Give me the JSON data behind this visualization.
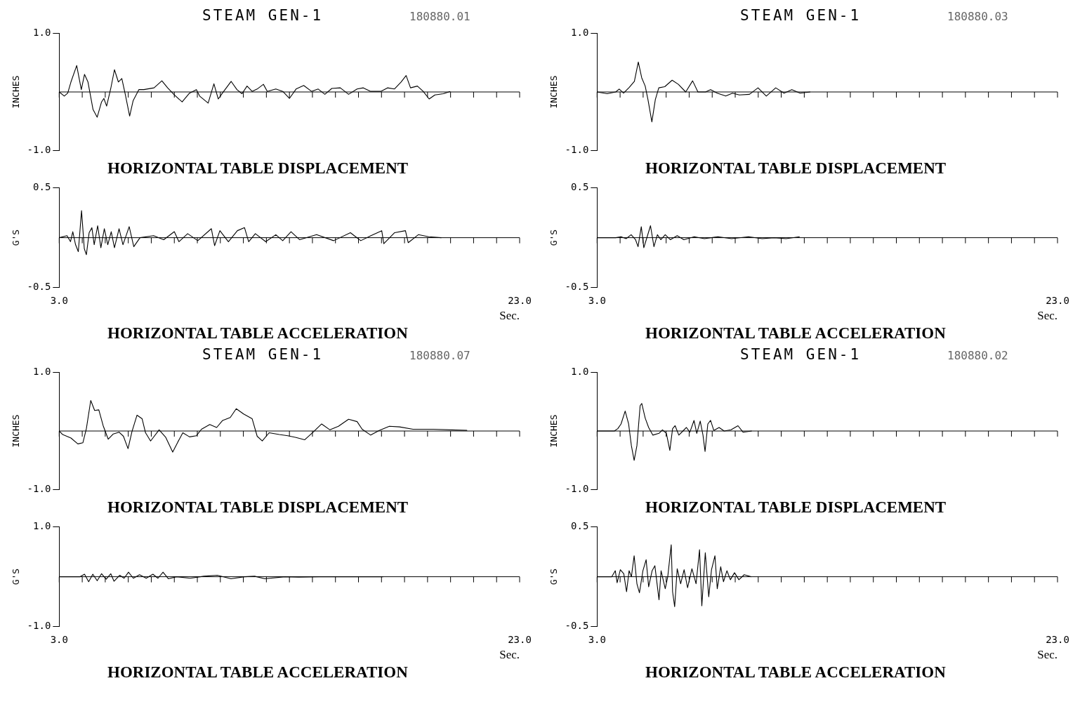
{
  "chart_data": [
    {
      "type": "line",
      "title": "STEAM GEN-1",
      "subtitle": "180880.01",
      "ylabel": "INCHES",
      "annotations": [
        "HORIZONTAL TABLE DISPLACEMENT"
      ],
      "tick_labels": "y",
      "xlim": [
        3,
        23
      ],
      "ylim": [
        -1,
        1
      ],
      "yticks": [
        {
          "value": -1,
          "label": "-1.0"
        },
        {
          "value": 1,
          "label": "1.0"
        }
      ],
      "xticks": [
        {
          "value": 3,
          "label": null
        },
        {
          "value": 4,
          "label": null
        },
        {
          "value": 5,
          "label": null
        },
        {
          "value": 6,
          "label": null
        },
        {
          "value": 7,
          "label": null
        },
        {
          "value": 8,
          "label": null
        },
        {
          "value": 9,
          "label": null
        },
        {
          "value": 10,
          "label": null
        },
        {
          "value": 11,
          "label": null
        },
        {
          "value": 12,
          "label": null
        },
        {
          "value": 13,
          "label": null
        },
        {
          "value": 14,
          "label": null
        },
        {
          "value": 15,
          "label": null
        },
        {
          "value": 16,
          "label": null
        },
        {
          "value": 17,
          "label": null
        },
        {
          "value": 18,
          "label": null
        },
        {
          "value": 19,
          "label": null
        },
        {
          "value": 20,
          "label": null
        },
        {
          "value": 21,
          "label": null
        },
        {
          "value": 22,
          "label": null
        },
        {
          "value": 23,
          "label": null
        }
      ],
      "series": [
        {
          "color": "#000000",
          "x": [
            3,
            3.22,
            3.37,
            3.51,
            3.76,
            3.96,
            4.1,
            4.25,
            4.47,
            4.65,
            4.84,
            4.94,
            5.06,
            5.24,
            5.4,
            5.57,
            5.72,
            5.87,
            6.06,
            6.21,
            6.46,
            6.68,
            7.12,
            7.46,
            7.71,
            8,
            8.34,
            8.66,
            8.96,
            9.1,
            9.47,
            9.72,
            9.91,
            10.09,
            10.47,
            10.72,
            10.94,
            11.16,
            11.38,
            11.6,
            11.87,
            12.04,
            12.41,
            12.71,
            13,
            13.29,
            13.62,
            13.96,
            14.25,
            14.54,
            14.84,
            15.21,
            15.57,
            15.94,
            16.21,
            16.53,
            16.97,
            17.26,
            17.56,
            17.85,
            18.07,
            18.26,
            18.56,
            18.81,
            19.07,
            19.32,
            19.69,
            19.99
          ],
          "values": [
            0,
            -0.07,
            -0.02,
            0.17,
            0.45,
            0.04,
            0.3,
            0.17,
            -0.3,
            -0.43,
            -0.17,
            -0.11,
            -0.24,
            0.06,
            0.38,
            0.17,
            0.23,
            -0.04,
            -0.41,
            -0.15,
            0.04,
            0.04,
            0.07,
            0.19,
            0.07,
            -0.05,
            -0.17,
            -0.02,
            0.04,
            -0.07,
            -0.19,
            0.14,
            -0.12,
            -0.02,
            0.18,
            0.04,
            -0.03,
            0.1,
            0.01,
            0.05,
            0.13,
            0.01,
            0.05,
            0.01,
            -0.11,
            0.05,
            0.11,
            0.01,
            0.05,
            -0.04,
            0.06,
            0.07,
            -0.04,
            0.05,
            0.07,
            0.01,
            0.01,
            0.07,
            0.05,
            0.17,
            0.28,
            0.07,
            0.1,
            0.01,
            -0.12,
            -0.05,
            -0.03,
            0.01
          ]
        }
      ]
    },
    {
      "type": "line",
      "ylabel": "G'S",
      "xlabel": "Sec.",
      "annotations": [
        "HORIZONTAL TABLE ACCELERATION"
      ],
      "xlim": [
        3,
        23
      ],
      "ylim": [
        -0.5,
        0.5
      ],
      "yticks": [
        {
          "value": -0.5,
          "label": "-0.5"
        },
        {
          "value": 0.5,
          "label": "0.5"
        }
      ],
      "xticks": [
        {
          "value": 3,
          "label": "3.0"
        },
        {
          "value": 4,
          "label": null
        },
        {
          "value": 5,
          "label": null
        },
        {
          "value": 6,
          "label": null
        },
        {
          "value": 7,
          "label": null
        },
        {
          "value": 8,
          "label": null
        },
        {
          "value": 9,
          "label": null
        },
        {
          "value": 10,
          "label": null
        },
        {
          "value": 11,
          "label": null
        },
        {
          "value": 12,
          "label": null
        },
        {
          "value": 13,
          "label": null
        },
        {
          "value": 14,
          "label": null
        },
        {
          "value": 15,
          "label": null
        },
        {
          "value": 16,
          "label": null
        },
        {
          "value": 17,
          "label": null
        },
        {
          "value": 18,
          "label": null
        },
        {
          "value": 19,
          "label": null
        },
        {
          "value": 20,
          "label": null
        },
        {
          "value": 21,
          "label": null
        },
        {
          "value": 22,
          "label": null
        },
        {
          "value": 23,
          "label": "23.0"
        }
      ],
      "series": [
        {
          "color": "#000000",
          "x": [
            3,
            3.34,
            3.49,
            3.59,
            3.71,
            3.83,
            3.97,
            4.09,
            4.18,
            4.3,
            4.42,
            4.52,
            4.67,
            4.81,
            4.96,
            5.11,
            5.26,
            5.4,
            5.6,
            5.77,
            6.04,
            6.24,
            6.51,
            7.1,
            7.54,
            8,
            8.2,
            8.58,
            9.02,
            9.61,
            9.75,
            9.98,
            10.35,
            10.74,
            11.05,
            11.23,
            11.52,
            11.97,
            12.41,
            12.71,
            13.07,
            13.44,
            14.18,
            14.92,
            15.65,
            16.1,
            16.54,
            17.01,
            17.1,
            17.57,
            18.04,
            18.16,
            18.6,
            19.05,
            19.6
          ],
          "values": [
            0,
            0.02,
            -0.04,
            0.06,
            -0.07,
            -0.14,
            0.27,
            -0.11,
            -0.17,
            0.05,
            0.1,
            -0.07,
            0.12,
            -0.1,
            0.09,
            -0.07,
            0.06,
            -0.1,
            0.09,
            -0.07,
            0.11,
            -0.09,
            0,
            0.02,
            -0.02,
            0.06,
            -0.04,
            0.04,
            -0.03,
            0.09,
            -0.08,
            0.07,
            -0.04,
            0.07,
            0.1,
            -0.04,
            0.04,
            -0.04,
            0.03,
            -0.03,
            0.06,
            -0.02,
            0.03,
            -0.03,
            0.05,
            -0.03,
            0.02,
            0.07,
            -0.06,
            0.05,
            0.07,
            -0.05,
            0.03,
            0.01,
            0
          ]
        }
      ]
    },
    {
      "type": "line",
      "title": "STEAM GEN-1",
      "subtitle": "180880.03",
      "ylabel": "INCHES",
      "annotations": [
        "HORIZONTAL TABLE DISPLACEMENT"
      ],
      "tick_labels": "y",
      "xlim": [
        3,
        23
      ],
      "ylim": [
        -1,
        1
      ],
      "yticks": [
        {
          "value": -1,
          "label": "-1.0"
        },
        {
          "value": 1,
          "label": "1.0"
        }
      ],
      "xticks": [
        {
          "value": 3,
          "label": null
        },
        {
          "value": 4,
          "label": null
        },
        {
          "value": 5,
          "label": null
        },
        {
          "value": 6,
          "label": null
        },
        {
          "value": 7,
          "label": null
        },
        {
          "value": 8,
          "label": null
        },
        {
          "value": 9,
          "label": null
        },
        {
          "value": 10,
          "label": null
        },
        {
          "value": 11,
          "label": null
        },
        {
          "value": 12,
          "label": null
        },
        {
          "value": 13,
          "label": null
        },
        {
          "value": 14,
          "label": null
        },
        {
          "value": 15,
          "label": null
        },
        {
          "value": 16,
          "label": null
        },
        {
          "value": 17,
          "label": null
        },
        {
          "value": 18,
          "label": null
        },
        {
          "value": 19,
          "label": null
        },
        {
          "value": 20,
          "label": null
        },
        {
          "value": 21,
          "label": null
        },
        {
          "value": 22,
          "label": null
        },
        {
          "value": 23,
          "label": null
        }
      ],
      "series": [
        {
          "color": "#000000",
          "x": [
            3,
            3.44,
            3.81,
            3.96,
            4.15,
            4.4,
            4.62,
            4.79,
            4.94,
            5.09,
            5.21,
            5.38,
            5.53,
            5.68,
            5.94,
            6.26,
            6.53,
            6.85,
            7.15,
            7.38,
            7.71,
            7.93,
            8.22,
            8.59,
            8.88,
            9.18,
            9.62,
            9.99,
            10.35,
            10.76,
            11.12,
            11.46,
            11.82,
            12.26
          ],
          "values": [
            0,
            -0.03,
            0,
            0.05,
            -0.02,
            0.08,
            0.18,
            0.51,
            0.24,
            0.1,
            -0.13,
            -0.51,
            -0.13,
            0.07,
            0.09,
            0.2,
            0.13,
            0,
            0.19,
            0,
            0,
            0.04,
            -0.02,
            -0.07,
            -0.02,
            -0.05,
            -0.04,
            0.07,
            -0.07,
            0.07,
            -0.02,
            0.04,
            -0.02,
            0
          ]
        }
      ]
    },
    {
      "type": "line",
      "ylabel": "G'S",
      "xlabel": "Sec.",
      "annotations": [
        "HORIZONTAL TABLE ACCELERATION"
      ],
      "xlim": [
        3,
        23
      ],
      "ylim": [
        -0.5,
        0.5
      ],
      "yticks": [
        {
          "value": -0.5,
          "label": "-0.5"
        },
        {
          "value": 0.5,
          "label": "0.5"
        }
      ],
      "xticks": [
        {
          "value": 3,
          "label": "3.0"
        },
        {
          "value": 4,
          "label": null
        },
        {
          "value": 5,
          "label": null
        },
        {
          "value": 6,
          "label": null
        },
        {
          "value": 7,
          "label": null
        },
        {
          "value": 8,
          "label": null
        },
        {
          "value": 9,
          "label": null
        },
        {
          "value": 10,
          "label": null
        },
        {
          "value": 11,
          "label": null
        },
        {
          "value": 12,
          "label": null
        },
        {
          "value": 13,
          "label": null
        },
        {
          "value": 14,
          "label": null
        },
        {
          "value": 15,
          "label": null
        },
        {
          "value": 16,
          "label": null
        },
        {
          "value": 17,
          "label": null
        },
        {
          "value": 18,
          "label": null
        },
        {
          "value": 19,
          "label": null
        },
        {
          "value": 20,
          "label": null
        },
        {
          "value": 21,
          "label": null
        },
        {
          "value": 22,
          "label": null
        },
        {
          "value": 23,
          "label": "23.0"
        }
      ],
      "series": [
        {
          "color": "#000000",
          "x": [
            3,
            3.81,
            4.04,
            4.26,
            4.48,
            4.67,
            4.78,
            4.92,
            5.03,
            5.15,
            5.32,
            5.47,
            5.62,
            5.77,
            5.96,
            6.18,
            6.48,
            6.77,
            7.22,
            7.66,
            8.25,
            8.84,
            9.58,
            10.17,
            10.69,
            11.21,
            11.8
          ],
          "values": [
            0,
            0,
            0.01,
            -0.01,
            0.03,
            -0.02,
            -0.09,
            0.11,
            -0.1,
            -0.01,
            0.12,
            -0.09,
            0.03,
            -0.02,
            0.03,
            -0.02,
            0.02,
            -0.02,
            0.01,
            -0.01,
            0.01,
            -0.01,
            0.01,
            -0.01,
            0,
            -0.01,
            0.01
          ]
        }
      ]
    },
    {
      "type": "line",
      "title": "STEAM GEN-1",
      "subtitle": "180880.07",
      "ylabel": "INCHES",
      "annotations": [
        "HORIZONTAL TABLE DISPLACEMENT"
      ],
      "tick_labels": "y",
      "xlim": [
        3,
        23
      ],
      "ylim": [
        -1,
        1
      ],
      "yticks": [
        {
          "value": -1,
          "label": "-1.0"
        },
        {
          "value": 1,
          "label": "1.0"
        }
      ],
      "xticks": [
        {
          "value": 3,
          "label": null
        },
        {
          "value": 4,
          "label": null
        },
        {
          "value": 5,
          "label": null
        },
        {
          "value": 6,
          "label": null
        },
        {
          "value": 7,
          "label": null
        },
        {
          "value": 8,
          "label": null
        },
        {
          "value": 9,
          "label": null
        },
        {
          "value": 10,
          "label": null
        },
        {
          "value": 11,
          "label": null
        },
        {
          "value": 12,
          "label": null
        },
        {
          "value": 13,
          "label": null
        },
        {
          "value": 14,
          "label": null
        },
        {
          "value": 15,
          "label": null
        },
        {
          "value": 16,
          "label": null
        },
        {
          "value": 17,
          "label": null
        },
        {
          "value": 18,
          "label": null
        },
        {
          "value": 19,
          "label": null
        },
        {
          "value": 20,
          "label": null
        },
        {
          "value": 21,
          "label": null
        },
        {
          "value": 22,
          "label": null
        },
        {
          "value": 23,
          "label": null
        }
      ],
      "series": [
        {
          "color": "#000000",
          "x": [
            3,
            3.15,
            3.51,
            3.81,
            4.03,
            4.18,
            4.37,
            4.54,
            4.72,
            4.91,
            5.13,
            5.35,
            5.6,
            5.79,
            5.99,
            6.16,
            6.38,
            6.6,
            6.75,
            6.97,
            7.34,
            7.63,
            7.93,
            8.15,
            8.37,
            8.66,
            8.96,
            9.18,
            9.54,
            9.84,
            10.1,
            10.43,
            10.69,
            11.01,
            11.38,
            11.6,
            11.82,
            12.12,
            12.56,
            12.93,
            13.29,
            13.66,
            14.03,
            14.4,
            14.76,
            15.13,
            15.57,
            15.94,
            16.16,
            16.53,
            16.9,
            17.34,
            17.78,
            18.37,
            19.25,
            20.72
          ],
          "values": [
            0,
            -0.06,
            -0.12,
            -0.22,
            -0.2,
            0.04,
            0.52,
            0.35,
            0.36,
            0.09,
            -0.14,
            -0.05,
            -0.02,
            -0.09,
            -0.3,
            -0.01,
            0.27,
            0.21,
            -0.03,
            -0.17,
            0.02,
            -0.11,
            -0.36,
            -0.19,
            -0.03,
            -0.1,
            -0.08,
            0.03,
            0.11,
            0.06,
            0.18,
            0.23,
            0.38,
            0.29,
            0.21,
            -0.09,
            -0.17,
            -0.03,
            -0.06,
            -0.08,
            -0.11,
            -0.15,
            -0.02,
            0.12,
            0.02,
            0.08,
            0.2,
            0.16,
            0.03,
            -0.07,
            0.01,
            0.08,
            0.07,
            0.03,
            0.03,
            0.01
          ]
        }
      ]
    },
    {
      "type": "line",
      "ylabel": "G'S",
      "xlabel": "Sec.",
      "annotations": [
        "HORIZONTAL TABLE ACCELERATION"
      ],
      "xlim": [
        3,
        23
      ],
      "ylim": [
        -1,
        1
      ],
      "yticks": [
        {
          "value": -1,
          "label": "-1.0"
        },
        {
          "value": 1,
          "label": "1.0"
        }
      ],
      "xticks": [
        {
          "value": 3,
          "label": "3.0"
        },
        {
          "value": 4,
          "label": null
        },
        {
          "value": 5,
          "label": null
        },
        {
          "value": 6,
          "label": null
        },
        {
          "value": 7,
          "label": null
        },
        {
          "value": 8,
          "label": null
        },
        {
          "value": 9,
          "label": null
        },
        {
          "value": 10,
          "label": null
        },
        {
          "value": 11,
          "label": null
        },
        {
          "value": 12,
          "label": null
        },
        {
          "value": 13,
          "label": null
        },
        {
          "value": 14,
          "label": null
        },
        {
          "value": 15,
          "label": null
        },
        {
          "value": 16,
          "label": null
        },
        {
          "value": 17,
          "label": null
        },
        {
          "value": 18,
          "label": null
        },
        {
          "value": 19,
          "label": null
        },
        {
          "value": 20,
          "label": null
        },
        {
          "value": 21,
          "label": null
        },
        {
          "value": 22,
          "label": null
        },
        {
          "value": 23,
          "label": "23.0"
        }
      ],
      "series": [
        {
          "color": "#000000",
          "x": [
            3,
            3.91,
            4.1,
            4.28,
            4.46,
            4.65,
            4.84,
            5.04,
            5.24,
            5.38,
            5.63,
            5.82,
            6.01,
            6.22,
            6.49,
            6.78,
            7.07,
            7.29,
            7.51,
            7.74,
            8.1,
            8.69,
            9.28,
            9.87,
            10.46,
            11.04,
            11.49,
            11.93,
            12.81,
            13.4,
            14.28,
            15.6,
            17.07
          ],
          "values": [
            0,
            0,
            0.05,
            -0.1,
            0.05,
            -0.08,
            0.06,
            -0.05,
            0.06,
            -0.09,
            0.03,
            -0.03,
            0.09,
            -0.03,
            0.04,
            -0.03,
            0.05,
            -0.03,
            0.09,
            -0.04,
            0,
            -0.03,
            0.01,
            0.03,
            -0.04,
            0,
            0.01,
            -0.04,
            0,
            -0.01,
            0,
            0,
            0
          ]
        }
      ]
    },
    {
      "type": "line",
      "title": "STEAM GEN-1",
      "subtitle": "180880.02",
      "ylabel": "INCHES",
      "annotations": [
        "HORIZONTAL TABLE DISPLACEMENT"
      ],
      "tick_labels": "y",
      "xlim": [
        3,
        23
      ],
      "ylim": [
        -1,
        1
      ],
      "yticks": [
        {
          "value": -1,
          "label": "-1.0"
        },
        {
          "value": 1,
          "label": "1.0"
        }
      ],
      "xticks": [
        {
          "value": 3,
          "label": null
        },
        {
          "value": 4,
          "label": null
        },
        {
          "value": 5,
          "label": null
        },
        {
          "value": 6,
          "label": null
        },
        {
          "value": 7,
          "label": null
        },
        {
          "value": 8,
          "label": null
        },
        {
          "value": 9,
          "label": null
        },
        {
          "value": 10,
          "label": null
        },
        {
          "value": 11,
          "label": null
        },
        {
          "value": 12,
          "label": null
        },
        {
          "value": 13,
          "label": null
        },
        {
          "value": 14,
          "label": null
        },
        {
          "value": 15,
          "label": null
        },
        {
          "value": 16,
          "label": null
        },
        {
          "value": 17,
          "label": null
        },
        {
          "value": 18,
          "label": null
        },
        {
          "value": 19,
          "label": null
        },
        {
          "value": 20,
          "label": null
        },
        {
          "value": 21,
          "label": null
        },
        {
          "value": 22,
          "label": null
        },
        {
          "value": 23,
          "label": null
        }
      ],
      "series": [
        {
          "color": "#000000",
          "x": [
            3,
            3.75,
            3.9,
            4.04,
            4.22,
            4.37,
            4.49,
            4.61,
            4.73,
            4.87,
            4.94,
            5.09,
            5.24,
            5.42,
            5.69,
            5.84,
            6.01,
            6.16,
            6.28,
            6.39,
            6.55,
            6.73,
            6.88,
            7.03,
            7.21,
            7.33,
            7.48,
            7.6,
            7.69,
            7.81,
            7.93,
            8.07,
            8.3,
            8.52,
            8.82,
            9.12,
            9.34,
            9.72
          ],
          "values": [
            0,
            0,
            0.04,
            0.12,
            0.34,
            0.12,
            -0.25,
            -0.5,
            -0.25,
            0.43,
            0.47,
            0.22,
            0.06,
            -0.07,
            -0.04,
            0.02,
            -0.04,
            -0.33,
            0.04,
            0.09,
            -0.07,
            0,
            0.06,
            -0.02,
            0.18,
            -0.04,
            0.17,
            -0.07,
            -0.35,
            0.12,
            0.18,
            0.01,
            0.06,
            0,
            0.02,
            0.09,
            -0.02,
            0
          ]
        }
      ]
    },
    {
      "type": "line",
      "ylabel": "G'S",
      "xlabel": "Sec.",
      "annotations": [
        "HORIZONTAL TABLE ACCELERATION"
      ],
      "xlim": [
        3,
        23
      ],
      "ylim": [
        -0.5,
        0.5
      ],
      "yticks": [
        {
          "value": -0.5,
          "label": "-0.5"
        },
        {
          "value": 0.5,
          "label": "0.5"
        }
      ],
      "xticks": [
        {
          "value": 3,
          "label": "3.0"
        },
        {
          "value": 4,
          "label": null
        },
        {
          "value": 5,
          "label": null
        },
        {
          "value": 6,
          "label": null
        },
        {
          "value": 7,
          "label": null
        },
        {
          "value": 8,
          "label": null
        },
        {
          "value": 9,
          "label": null
        },
        {
          "value": 10,
          "label": null
        },
        {
          "value": 11,
          "label": null
        },
        {
          "value": 12,
          "label": null
        },
        {
          "value": 13,
          "label": null
        },
        {
          "value": 14,
          "label": null
        },
        {
          "value": 15,
          "label": null
        },
        {
          "value": 16,
          "label": null
        },
        {
          "value": 17,
          "label": null
        },
        {
          "value": 18,
          "label": null
        },
        {
          "value": 19,
          "label": null
        },
        {
          "value": 20,
          "label": null
        },
        {
          "value": 21,
          "label": null
        },
        {
          "value": 22,
          "label": null
        },
        {
          "value": 23,
          "label": "23.0"
        }
      ],
      "series": [
        {
          "color": "#000000",
          "x": [
            3,
            3.64,
            3.79,
            3.87,
            4.01,
            4.16,
            4.28,
            4.39,
            4.49,
            4.61,
            4.73,
            4.84,
            4.99,
            5.13,
            5.24,
            5.39,
            5.51,
            5.69,
            5.78,
            5.96,
            6.07,
            6.22,
            6.28,
            6.37,
            6.48,
            6.63,
            6.78,
            6.93,
            7.12,
            7.3,
            7.45,
            7.55,
            7.7,
            7.85,
            7.97,
            8.12,
            8.22,
            8.37,
            8.49,
            8.64,
            8.79,
            8.97,
            9.16,
            9.39,
            9.69
          ],
          "values": [
            0,
            0,
            0.06,
            -0.06,
            0.07,
            0.03,
            -0.15,
            0.06,
            0,
            0.21,
            -0.07,
            -0.16,
            0.06,
            0.17,
            -0.1,
            0.06,
            0.11,
            -0.23,
            0.06,
            -0.12,
            0,
            0.32,
            -0.15,
            -0.3,
            0.08,
            -0.07,
            0.07,
            -0.11,
            0.08,
            -0.07,
            0.27,
            -0.29,
            0.24,
            -0.2,
            0.07,
            0.21,
            -0.12,
            0.1,
            -0.05,
            0.06,
            -0.03,
            0.04,
            -0.03,
            0.02,
            0
          ]
        }
      ]
    }
  ]
}
